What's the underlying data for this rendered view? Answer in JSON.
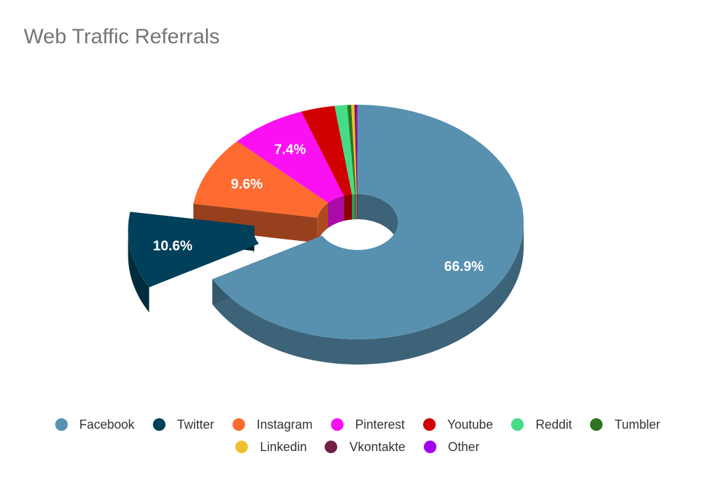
{
  "chart_data": {
    "type": "pie",
    "title": "Web Traffic Referrals",
    "donut": true,
    "three_d": true,
    "exploded_slice": "Twitter",
    "legend_position": "bottom",
    "slices": [
      {
        "name": "Facebook",
        "value": 66.9,
        "color": "#5891b0",
        "label": "66.9%"
      },
      {
        "name": "Twitter",
        "value": 10.6,
        "color": "#01405a",
        "label": "10.6%"
      },
      {
        "name": "Instagram",
        "value": 9.6,
        "color": "#fe6b31",
        "label": "9.6%"
      },
      {
        "name": "Pinterest",
        "value": 7.4,
        "color": "#fb10f4",
        "label": "7.4%"
      },
      {
        "name": "Youtube",
        "value": 3.3,
        "color": "#d00000",
        "label": ""
      },
      {
        "name": "Reddit",
        "value": 1.2,
        "color": "#45dc87",
        "label": ""
      },
      {
        "name": "Tumbler",
        "value": 0.4,
        "color": "#2d7421",
        "label": ""
      },
      {
        "name": "Linkedin",
        "value": 0.3,
        "color": "#f0bf2d",
        "label": ""
      },
      {
        "name": "Vkontakte",
        "value": 0.2,
        "color": "#721e46",
        "label": ""
      },
      {
        "name": "Other",
        "value": 0.1,
        "color": "#a400f0",
        "label": ""
      }
    ]
  },
  "legend_rows": [
    [
      "Facebook",
      "Twitter",
      "Instagram",
      "Pinterest",
      "Youtube",
      "Reddit",
      "Tumbler"
    ],
    [
      "Linkedin",
      "Vkontakte",
      "Other"
    ]
  ]
}
